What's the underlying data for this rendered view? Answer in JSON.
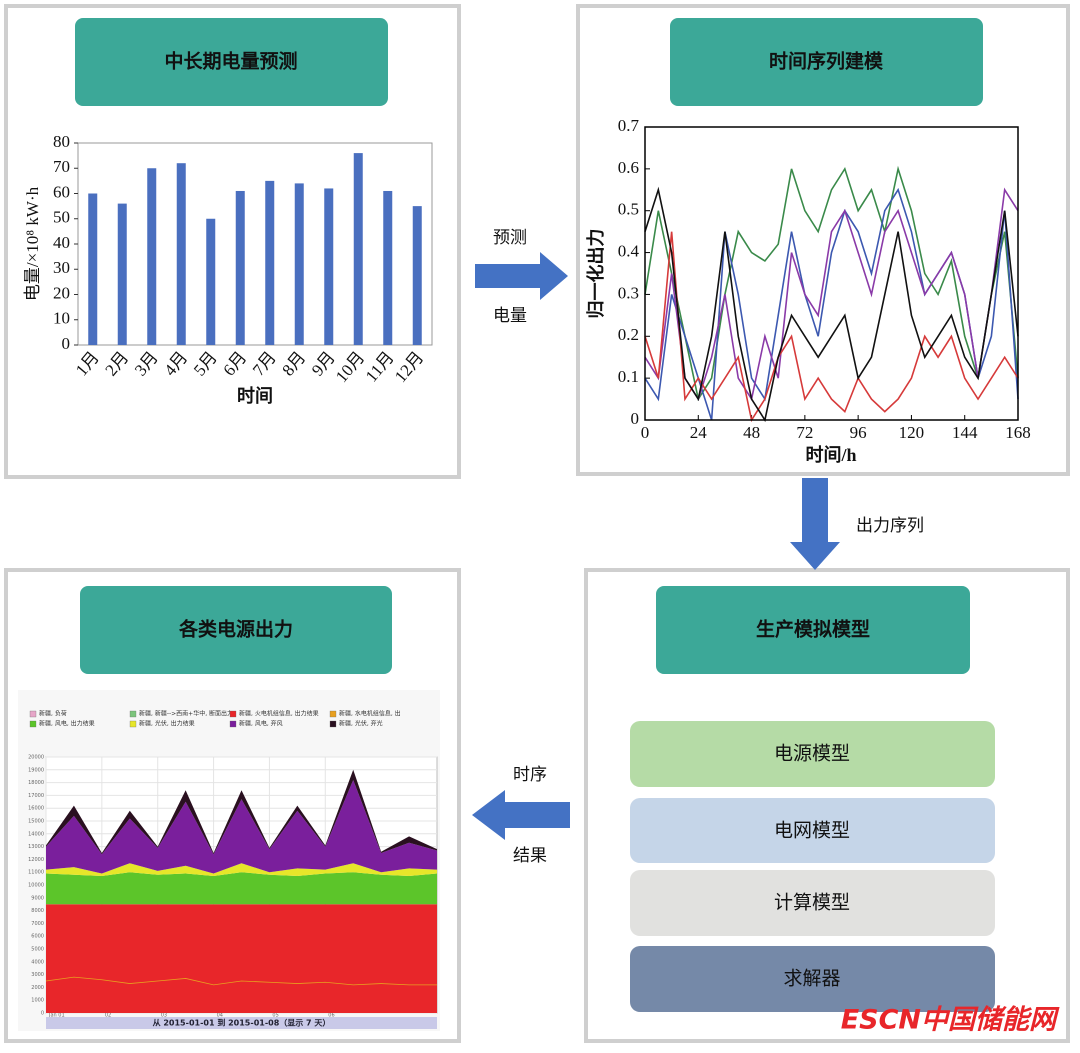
{
  "panels": [
    "中长期电量预测",
    "时间序列建模",
    "各类电源出力",
    "生产模拟模型"
  ],
  "arrows": [
    [
      "预测",
      "电量"
    ],
    [
      "出力序列"
    ],
    [
      "时序",
      "结果"
    ]
  ],
  "model_boxes": [
    "电源模型",
    "电网模型",
    "计算模型",
    "求解器"
  ],
  "watermark": "ESCN中国储能网",
  "chart_data": [
    {
      "type": "bar",
      "y_label": "电量/×10⁸ kW·h",
      "x_label": "时间",
      "color": "#4a6fbf",
      "categories": [
        "1月",
        "2月",
        "3月",
        "4月",
        "5月",
        "6月",
        "7月",
        "8月",
        "9月",
        "10月",
        "11月",
        "12月"
      ],
      "values": [
        60,
        56,
        70,
        72,
        50,
        61,
        65,
        64,
        62,
        76,
        61,
        55
      ],
      "ylim": [
        0,
        80
      ],
      "yticks": [
        0,
        10,
        20,
        30,
        40,
        50,
        60,
        70,
        80
      ]
    },
    {
      "type": "line",
      "y_label": "归一化出力",
      "x_label": "时间/h",
      "x": [
        0,
        6,
        12,
        18,
        24,
        30,
        36,
        42,
        48,
        54,
        60,
        66,
        72,
        78,
        84,
        90,
        96,
        102,
        108,
        114,
        120,
        126,
        132,
        138,
        144,
        150,
        156,
        162,
        168
      ],
      "xlim": [
        0,
        168
      ],
      "xticks": [
        0,
        24,
        48,
        72,
        96,
        120,
        144,
        168
      ],
      "ylim": [
        0,
        0.7
      ],
      "yticks": [
        0,
        0.1,
        0.2,
        0.3,
        0.4,
        0.5,
        0.6,
        0.7
      ],
      "series": [
        {
          "color": "#3a8a4a",
          "values": [
            0.3,
            0.5,
            0.35,
            0.2,
            0.05,
            0.1,
            0.3,
            0.45,
            0.4,
            0.38,
            0.42,
            0.6,
            0.5,
            0.45,
            0.55,
            0.6,
            0.5,
            0.55,
            0.45,
            0.6,
            0.5,
            0.35,
            0.3,
            0.38,
            0.2,
            0.1,
            0.3,
            0.45,
            0.1
          ]
        },
        {
          "color": "#3c58b0",
          "values": [
            0.1,
            0.05,
            0.3,
            0.2,
            0.1,
            0,
            0.45,
            0.3,
            0.1,
            0.05,
            0.25,
            0.45,
            0.3,
            0.2,
            0.4,
            0.5,
            0.45,
            0.35,
            0.5,
            0.55,
            0.45,
            0.3,
            0.35,
            0.4,
            0.3,
            0.1,
            0.2,
            0.5,
            0.05
          ]
        },
        {
          "color": "#8a3aa8",
          "values": [
            0.15,
            0.1,
            0.35,
            0.1,
            0.05,
            0.15,
            0.3,
            0.1,
            0.05,
            0.2,
            0.1,
            0.4,
            0.3,
            0.25,
            0.45,
            0.5,
            0.4,
            0.3,
            0.45,
            0.5,
            0.4,
            0.3,
            0.35,
            0.4,
            0.3,
            0.1,
            0.3,
            0.55,
            0.5
          ]
        },
        {
          "color": "#d63a3a",
          "values": [
            0.2,
            0.1,
            0.45,
            0.05,
            0.1,
            0.05,
            0.1,
            0.15,
            0,
            0.05,
            0.15,
            0.2,
            0.05,
            0.1,
            0.05,
            0.02,
            0.1,
            0.05,
            0.02,
            0.05,
            0.1,
            0.2,
            0.15,
            0.2,
            0.1,
            0.05,
            0.1,
            0.15,
            0.1
          ]
        },
        {
          "color": "#111111",
          "values": [
            0.45,
            0.55,
            0.4,
            0.1,
            0.05,
            0.2,
            0.45,
            0.2,
            0.05,
            0,
            0.15,
            0.25,
            0.2,
            0.15,
            0.2,
            0.25,
            0.1,
            0.15,
            0.3,
            0.45,
            0.25,
            0.15,
            0.2,
            0.25,
            0.15,
            0.1,
            0.3,
            0.5,
            0.2
          ]
        }
      ]
    },
    {
      "type": "area",
      "footer": "从 2015-01-01 到 2015-01-08（显示 7 天）",
      "x": [
        0,
        12,
        24,
        36,
        48,
        60,
        72,
        84,
        96,
        108,
        120,
        132,
        144,
        156,
        168
      ],
      "xlim": [
        0,
        168
      ],
      "xticks": [
        {
          "value": 0,
          "label": "Jan 01"
        },
        {
          "value": 24,
          "label": "02"
        },
        {
          "value": 48,
          "label": "03"
        },
        {
          "value": 72,
          "label": "04"
        },
        {
          "value": 96,
          "label": "05"
        },
        {
          "value": 120,
          "label": "06"
        }
      ],
      "ylim": [
        0,
        20000
      ],
      "yticks": [
        0,
        1000,
        2000,
        3000,
        4000,
        5000,
        6000,
        7000,
        8000,
        9000,
        10000,
        11000,
        12000,
        13000,
        14000,
        15000,
        16000,
        17000,
        18000,
        19000,
        20000
      ],
      "series": [
        {
          "name": "新疆, 负荷",
          "color": "#e6a6c8"
        },
        {
          "name": "新疆, 新疆-->西南+华中, 断面出力",
          "color": "#7cc47c"
        },
        {
          "name": "新疆, 火电机组信息, 出力结果",
          "color": "#e8262a",
          "values": [
            8500,
            8500,
            8500,
            8500,
            8500,
            8500,
            8500,
            8500,
            8500,
            8500,
            8500,
            8500,
            8500,
            8500,
            8500
          ]
        },
        {
          "name": "新疆, 水电机组信息, 出",
          "color": "#e8a020",
          "style": "line",
          "values": [
            2500,
            2800,
            2600,
            2300,
            2500,
            2700,
            2200,
            2500,
            2400,
            2300,
            2400,
            2200,
            2300,
            2200,
            2200
          ]
        },
        {
          "name": "新疆, 风电, 出力结果",
          "color": "#5cc52a",
          "values": [
            2400,
            2300,
            2200,
            2500,
            2300,
            2400,
            2200,
            2500,
            2300,
            2200,
            2400,
            2500,
            2300,
            2200,
            2400
          ]
        },
        {
          "name": "新疆, 光伏, 出力结果",
          "color": "#e6e62a",
          "values": [
            300,
            600,
            200,
            700,
            300,
            600,
            200,
            700,
            200,
            600,
            300,
            700,
            200,
            600,
            300
          ]
        },
        {
          "name": "新疆, 风电, 弃风",
          "color": "#7a1f9c",
          "values": [
            1800,
            4000,
            1500,
            3500,
            1800,
            5000,
            1500,
            5000,
            1800,
            4500,
            1800,
            6500,
            1500,
            2000,
            1500
          ]
        },
        {
          "name": "新疆, 光伏, 弃光",
          "color": "#2a1020",
          "values": [
            100,
            800,
            100,
            600,
            100,
            900,
            100,
            700,
            100,
            400,
            100,
            800,
            100,
            500,
            100
          ]
        }
      ]
    }
  ]
}
